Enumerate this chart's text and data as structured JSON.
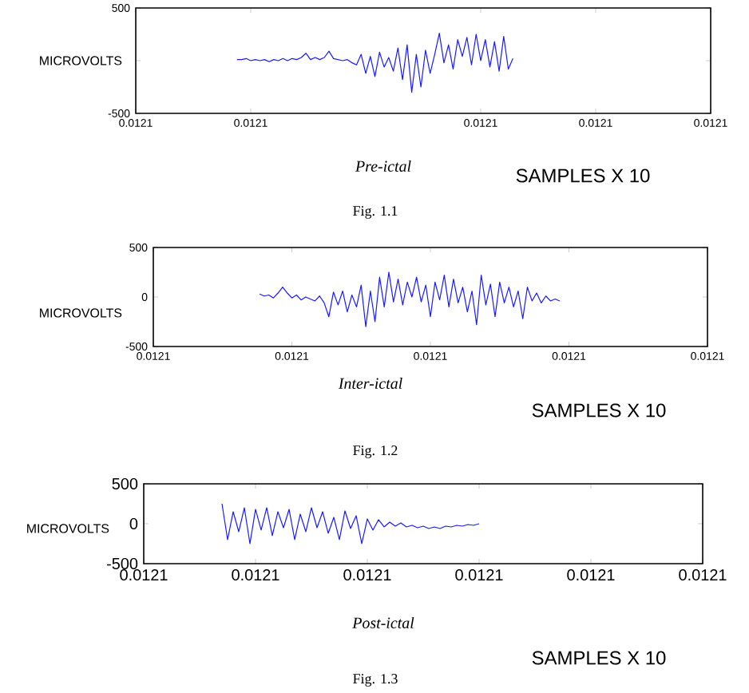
{
  "chart_data": [
    {
      "type": "line",
      "xlabel": "Pre-ictal",
      "ylabel": "MICROVOLTS",
      "annotations": [
        "SAMPLES X 10",
        "Fig. 1.1"
      ],
      "ylim": [
        -500,
        500
      ],
      "yticks": [
        -500,
        {
          "value": 0,
          "label": null
        },
        500
      ],
      "categories": [
        "0.0121",
        null,
        null,
        null,
        null,
        null,
        null,
        null,
        null,
        null,
        null,
        null,
        null,
        null,
        null,
        null,
        null,
        null,
        null,
        null,
        null,
        null,
        null,
        null,
        null,
        "0.0121",
        null,
        null,
        null,
        null,
        null,
        null,
        null,
        null,
        null,
        null,
        null,
        null,
        null,
        null,
        null,
        null,
        null,
        null,
        null,
        null,
        null,
        null,
        null,
        null,
        null,
        null,
        null,
        null,
        null,
        null,
        null,
        null,
        null,
        null,
        null,
        null,
        null,
        null,
        null,
        null,
        null,
        null,
        null,
        null,
        null,
        null,
        null,
        null,
        null,
        "0.0121",
        null,
        null,
        null,
        null,
        null,
        null,
        null,
        null,
        null,
        null,
        null,
        null,
        null,
        null,
        null,
        null,
        null,
        null,
        null,
        null,
        null,
        null,
        null,
        null,
        "0.0121",
        null,
        null,
        null,
        null,
        null,
        null,
        null,
        null,
        null,
        null,
        null,
        null,
        null,
        null,
        null,
        null,
        null,
        null,
        null,
        null,
        null,
        null,
        null,
        null,
        "0.0121"
      ],
      "series": [
        {
          "color": "#1a1aff",
          "values": [
            null,
            null,
            null,
            null,
            null,
            null,
            null,
            null,
            null,
            null,
            null,
            null,
            null,
            null,
            null,
            null,
            null,
            null,
            null,
            null,
            null,
            null,
            10,
            10,
            20,
            0,
            10,
            0,
            10,
            -10,
            10,
            0,
            20,
            0,
            20,
            10,
            30,
            70,
            10,
            30,
            10,
            30,
            90,
            20,
            10,
            0,
            10,
            -20,
            -40,
            60,
            -120,
            40,
            -150,
            80,
            -60,
            30,
            -100,
            120,
            -180,
            150,
            -300,
            60,
            -250,
            100,
            -120,
            60,
            260,
            -20,
            150,
            -80,
            200,
            40,
            220,
            -40,
            250,
            0,
            200,
            -60,
            180,
            -100,
            230,
            -80,
            20,
            null,
            null,
            null,
            null,
            null,
            null,
            null,
            null,
            null,
            null,
            null,
            null,
            null,
            null,
            null,
            null,
            null,
            null,
            null,
            null,
            null,
            null,
            null,
            null,
            null,
            null,
            null,
            null,
            null,
            null,
            null,
            null,
            null,
            null,
            null,
            null,
            null,
            null,
            null,
            null,
            null,
            null,
            null
          ]
        }
      ]
    },
    {
      "type": "line",
      "xlabel": "Inter-ictal",
      "ylabel": "MICROVOLTS",
      "annotations": [
        "SAMPLES X 10",
        "Fig. 1.2"
      ],
      "ylim": [
        -500,
        500
      ],
      "yticks": [
        -500,
        0,
        500
      ],
      "categories": [
        "0.0121",
        null,
        null,
        null,
        null,
        null,
        null,
        null,
        null,
        null,
        null,
        null,
        null,
        null,
        null,
        null,
        null,
        null,
        null,
        null,
        null,
        null,
        null,
        null,
        null,
        null,
        null,
        null,
        null,
        null,
        "0.0121",
        null,
        null,
        null,
        null,
        null,
        null,
        null,
        null,
        null,
        null,
        null,
        null,
        null,
        null,
        null,
        null,
        null,
        null,
        null,
        null,
        null,
        null,
        null,
        null,
        null,
        null,
        null,
        null,
        null,
        "0.0121",
        null,
        null,
        null,
        null,
        null,
        null,
        null,
        null,
        null,
        null,
        null,
        null,
        null,
        null,
        null,
        null,
        null,
        null,
        null,
        null,
        null,
        null,
        null,
        null,
        null,
        null,
        null,
        null,
        null,
        "0.0121",
        null,
        null,
        null,
        null,
        null,
        null,
        null,
        null,
        null,
        null,
        null,
        null,
        null,
        null,
        null,
        null,
        null,
        null,
        null,
        null,
        null,
        null,
        null,
        null,
        null,
        null,
        null,
        null,
        null,
        "0.0121"
      ],
      "series": [
        {
          "color": "#1a1aff",
          "values": [
            null,
            null,
            null,
            null,
            null,
            null,
            null,
            null,
            null,
            null,
            null,
            null,
            null,
            null,
            null,
            null,
            null,
            null,
            null,
            null,
            null,
            null,
            null,
            30,
            10,
            20,
            -10,
            40,
            100,
            40,
            -10,
            20,
            -30,
            0,
            -20,
            -40,
            10,
            -60,
            -200,
            50,
            -80,
            60,
            -150,
            20,
            -100,
            120,
            -300,
            60,
            -250,
            200,
            -100,
            250,
            -50,
            180,
            -80,
            150,
            0,
            200,
            -50,
            120,
            -200,
            150,
            -30,
            220,
            -100,
            180,
            -60,
            100,
            -150,
            60,
            -280,
            220,
            -80,
            130,
            -200,
            150,
            -60,
            100,
            -100,
            60,
            -220,
            100,
            -40,
            40,
            -60,
            10,
            -40,
            -20,
            -40,
            null,
            null,
            null,
            null,
            null,
            null,
            null,
            null,
            null,
            null,
            null,
            null,
            null,
            null,
            null,
            null,
            null,
            null,
            null,
            null,
            null,
            null,
            null,
            null,
            null,
            null,
            null,
            null,
            null,
            null,
            null,
            null
          ]
        }
      ]
    },
    {
      "type": "line",
      "xlabel": "Post-ictal",
      "ylabel": "MICROVOLTS",
      "annotations": [
        "SAMPLES X 10",
        "Fig. 1.3"
      ],
      "ylim": [
        -500,
        500
      ],
      "yticks": [
        -500,
        0,
        500
      ],
      "categories": [
        "0.0121",
        null,
        null,
        null,
        null,
        null,
        null,
        null,
        null,
        null,
        null,
        null,
        null,
        null,
        null,
        null,
        null,
        null,
        null,
        null,
        "0.0121",
        null,
        null,
        null,
        null,
        null,
        null,
        null,
        null,
        null,
        null,
        null,
        null,
        null,
        null,
        null,
        null,
        null,
        null,
        null,
        "0.0121",
        null,
        null,
        null,
        null,
        null,
        null,
        null,
        null,
        null,
        null,
        null,
        null,
        null,
        null,
        null,
        null,
        null,
        null,
        null,
        "0.0121",
        null,
        null,
        null,
        null,
        null,
        null,
        null,
        null,
        null,
        null,
        null,
        null,
        null,
        null,
        null,
        null,
        null,
        null,
        null,
        "0.0121",
        null,
        null,
        null,
        null,
        null,
        null,
        null,
        null,
        null,
        null,
        null,
        null,
        null,
        null,
        null,
        null,
        null,
        null,
        null,
        "0.0121"
      ],
      "series": [
        {
          "color": "#1a1aff",
          "values": [
            null,
            null,
            null,
            null,
            null,
            null,
            null,
            null,
            null,
            null,
            null,
            null,
            null,
            null,
            250,
            -200,
            150,
            -100,
            200,
            -250,
            180,
            -80,
            200,
            -150,
            150,
            -50,
            180,
            -200,
            120,
            -100,
            200,
            -50,
            150,
            -120,
            80,
            -200,
            160,
            -60,
            100,
            -250,
            60,
            -80,
            50,
            -40,
            20,
            -30,
            10,
            -40,
            -20,
            -50,
            -30,
            -60,
            -40,
            -60,
            -30,
            -40,
            -20,
            -30,
            -10,
            -20,
            0,
            null,
            null,
            null,
            null,
            null,
            null,
            null,
            null,
            null,
            null,
            null,
            null,
            null,
            null,
            null,
            null,
            null,
            null,
            null,
            null,
            null,
            null,
            null,
            null,
            null,
            null,
            null,
            null,
            null,
            null,
            null,
            null,
            null,
            null,
            null,
            null,
            null,
            null,
            null,
            null
          ]
        }
      ]
    }
  ]
}
